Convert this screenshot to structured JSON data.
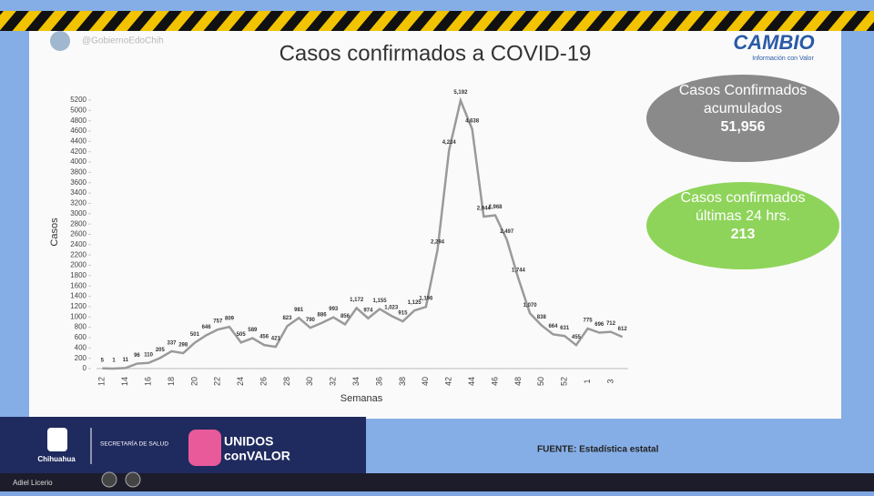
{
  "header": {
    "handle": "@GobiernoEdoChih",
    "logo": "CAMBIO",
    "logo_tag": "Información con Valor"
  },
  "boxes": [
    {
      "label": "Casos Confirmados acumulados",
      "value": "51,956"
    },
    {
      "label": "Casos confirmados últimas 24 hrs.",
      "value": "213"
    }
  ],
  "footer": {
    "state": "Chihuahua",
    "dept": "SECRETARÍA DE SALUD",
    "slogan1": "UNIDOS",
    "slogan2": "conVALOR",
    "source": "FUENTE: Estadística estatal",
    "participant": "Adiel Licerio"
  },
  "chart_data": {
    "type": "line",
    "title": "Casos confirmados a COVID-19",
    "x_label": "Semanas",
    "y_label": "Casos",
    "color": "#9a9a9a",
    "categories": [
      "12",
      null,
      "14",
      null,
      "16",
      null,
      "18",
      null,
      "20",
      null,
      "22",
      null,
      "24",
      null,
      "26",
      null,
      "28",
      null,
      "30",
      null,
      "32",
      null,
      "34",
      null,
      "36",
      null,
      "38",
      null,
      "40",
      null,
      "42",
      null,
      "44",
      null,
      "46",
      null,
      "48",
      null,
      "50",
      null,
      "52",
      null,
      "1",
      null,
      "3",
      null
    ],
    "values": [
      5,
      1,
      11,
      96,
      110,
      205,
      337,
      298,
      501,
      646,
      757,
      809,
      505,
      589,
      456,
      421,
      823,
      981,
      790,
      886,
      993,
      856,
      1172,
      974,
      1155,
      1023,
      915,
      1125,
      1196,
      2294,
      4224,
      5192,
      4638,
      2944,
      2968,
      2497,
      1744,
      1070,
      838,
      664,
      631,
      455,
      775,
      696,
      712,
      612
    ],
    "value_labels": [
      "5",
      "1",
      "11",
      "96",
      "110",
      "205",
      "337",
      "298",
      "501",
      "646",
      "757",
      "809",
      "505",
      "589",
      "456",
      "421",
      "823",
      "981",
      "790",
      "886",
      "993",
      "856",
      "1,172",
      "974",
      "1,155",
      "1,023",
      "915",
      "1,125",
      "1,196",
      "2,294",
      "4,224",
      "5,192",
      "4,638",
      "2,944",
      "2,968",
      "2,497",
      "1,744",
      "1,070",
      "838",
      "664",
      "631",
      "455",
      "775",
      "696",
      "712",
      "612"
    ],
    "ylim": [
      0,
      5200
    ],
    "yticks": [
      0,
      200,
      400,
      600,
      800,
      1000,
      1200,
      1400,
      1600,
      1800,
      2000,
      2200,
      2400,
      2600,
      2800,
      3000,
      3200,
      3400,
      3600,
      3800,
      4000,
      4200,
      4400,
      4600,
      4800,
      5000,
      5200
    ]
  }
}
